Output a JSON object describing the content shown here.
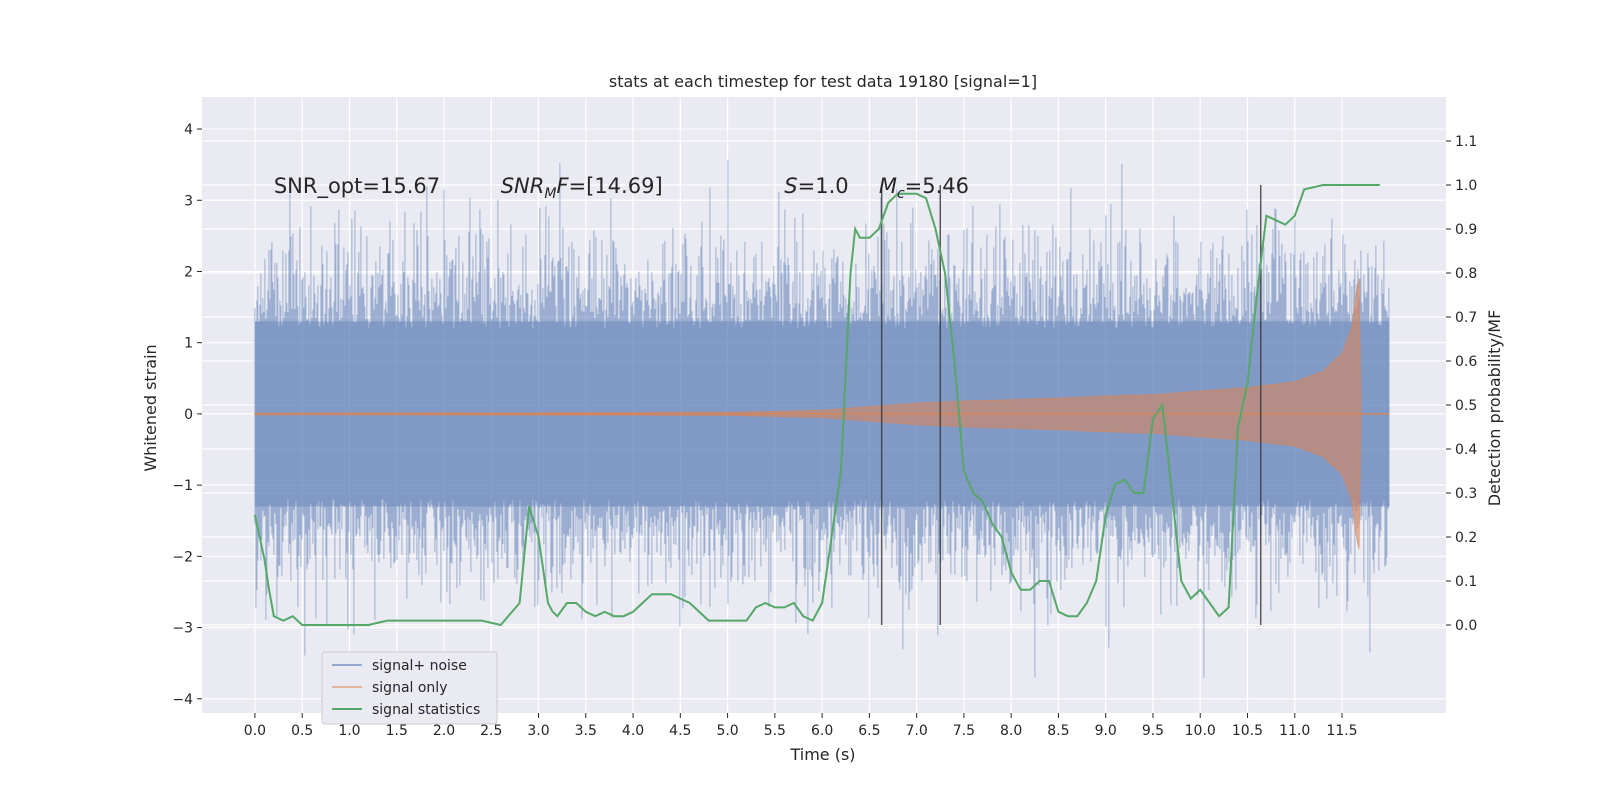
{
  "chart_data": {
    "type": "line",
    "title": "stats at each timestep for test data 19180 [signal=1]",
    "xlabel": "Time (s)",
    "ylabel": "Whitened strain",
    "y2label": "Detection probability/MF",
    "xlim": [
      -0.56,
      12.6
    ],
    "ylim": [
      -4.2,
      4.45
    ],
    "y2lim": [
      -0.2,
      1.2
    ],
    "xticks": [
      0.0,
      0.5,
      1.0,
      1.5,
      2.0,
      2.5,
      3.0,
      3.5,
      4.0,
      4.5,
      5.0,
      5.5,
      6.0,
      6.5,
      7.0,
      7.5,
      8.0,
      8.5,
      9.0,
      9.5,
      10.0,
      10.5,
      11.0,
      11.5
    ],
    "xtick_labels": [
      "0.0",
      "0.5",
      "1.0",
      "1.5",
      "2.0",
      "2.5",
      "3.0",
      "3.5",
      "4.0",
      "4.5",
      "5.0",
      "5.5",
      "6.0",
      "6.5",
      "7.0",
      "7.5",
      "8.0",
      "8.5",
      "9.0",
      "9.5",
      "10.0",
      "10.5",
      "11.0",
      "11.5"
    ],
    "yticks": [
      -4,
      -3,
      -2,
      -1,
      0,
      1,
      2,
      3,
      4
    ],
    "ytick_labels": [
      "−4",
      "−3",
      "−2",
      "−1",
      "0",
      "1",
      "2",
      "3",
      "4"
    ],
    "y2ticks": [
      0.0,
      0.1,
      0.2,
      0.3,
      0.4,
      0.5,
      0.6,
      0.7,
      0.8,
      0.9,
      1.0,
      1.1
    ],
    "y2tick_labels": [
      "0.0",
      "0.1",
      "0.2",
      "0.3",
      "0.4",
      "0.5",
      "0.6",
      "0.7",
      "0.8",
      "0.9",
      "1.0",
      "1.1"
    ],
    "grid": true,
    "legend_position": "lower-left",
    "annotations": [
      {
        "text": "SNR_opt=15.67",
        "x": 0.2,
        "y": 3.2
      },
      {
        "text": "SNR_MF=[14.69]",
        "x": 2.6,
        "y": 3.2
      },
      {
        "text": "S=1.0",
        "x": 5.6,
        "y": 3.2
      },
      {
        "text": "M_c=5.46",
        "x": 6.6,
        "y": 3.2
      }
    ],
    "vertical_lines": [
      6.63,
      7.25,
      10.64
    ],
    "series": [
      {
        "name": "signal+ noise",
        "color": "#4c72b0",
        "axis": "left",
        "kind": "noise-band",
        "t_start": 0.0,
        "t_end": 12.0,
        "core_amplitude": 1.3,
        "peak_amplitude": 4.1
      },
      {
        "name": "signal only",
        "color": "#dd8452",
        "axis": "left",
        "kind": "chirp-envelope",
        "t": [
          0.0,
          5.0,
          6.0,
          6.5,
          7.0,
          7.5,
          8.0,
          8.5,
          9.0,
          9.5,
          10.0,
          10.5,
          11.0,
          11.3,
          11.5,
          11.6,
          11.65,
          11.68,
          11.7,
          12.0
        ],
        "amplitude": [
          0.01,
          0.02,
          0.05,
          0.1,
          0.15,
          0.18,
          0.2,
          0.22,
          0.25,
          0.27,
          0.32,
          0.37,
          0.45,
          0.6,
          0.85,
          1.2,
          1.7,
          1.9,
          0.0,
          0.0
        ]
      },
      {
        "name": "signal statistics",
        "color": "#55a868",
        "axis": "right",
        "x": [
          0.0,
          0.1,
          0.15,
          0.2,
          0.3,
          0.4,
          0.5,
          0.6,
          0.8,
          1.0,
          1.2,
          1.4,
          1.6,
          1.8,
          1.9,
          2.0,
          2.2,
          2.4,
          2.6,
          2.8,
          2.9,
          3.0,
          3.1,
          3.15,
          3.2,
          3.3,
          3.4,
          3.5,
          3.6,
          3.7,
          3.8,
          3.9,
          4.0,
          4.1,
          4.2,
          4.3,
          4.4,
          4.5,
          4.6,
          4.8,
          5.0,
          5.2,
          5.3,
          5.4,
          5.5,
          5.6,
          5.7,
          5.8,
          5.9,
          6.0,
          6.1,
          6.2,
          6.3,
          6.35,
          6.4,
          6.5,
          6.6,
          6.7,
          6.8,
          7.0,
          7.1,
          7.2,
          7.3,
          7.4,
          7.5,
          7.6,
          7.7,
          7.8,
          7.9,
          8.0,
          8.1,
          8.2,
          8.3,
          8.4,
          8.5,
          8.6,
          8.7,
          8.8,
          8.9,
          9.0,
          9.1,
          9.2,
          9.3,
          9.4,
          9.5,
          9.6,
          9.7,
          9.8,
          9.9,
          10.0,
          10.1,
          10.2,
          10.3,
          10.4,
          10.5,
          10.6,
          10.7,
          10.8,
          10.9,
          11.0,
          11.1,
          11.3,
          11.5,
          11.7,
          11.8,
          11.9
        ],
        "y": [
          0.25,
          0.15,
          0.08,
          0.02,
          0.01,
          0.02,
          0.0,
          0.0,
          0.0,
          0.0,
          0.0,
          0.01,
          0.01,
          0.01,
          0.01,
          0.01,
          0.01,
          0.01,
          0.0,
          0.05,
          0.27,
          0.2,
          0.05,
          0.03,
          0.02,
          0.05,
          0.05,
          0.03,
          0.02,
          0.03,
          0.02,
          0.02,
          0.03,
          0.05,
          0.07,
          0.07,
          0.07,
          0.06,
          0.05,
          0.01,
          0.01,
          0.01,
          0.04,
          0.05,
          0.04,
          0.04,
          0.05,
          0.02,
          0.01,
          0.05,
          0.2,
          0.35,
          0.8,
          0.9,
          0.88,
          0.88,
          0.9,
          0.96,
          0.98,
          0.98,
          0.97,
          0.9,
          0.8,
          0.6,
          0.35,
          0.3,
          0.28,
          0.23,
          0.2,
          0.12,
          0.08,
          0.08,
          0.1,
          0.1,
          0.03,
          0.02,
          0.02,
          0.05,
          0.1,
          0.25,
          0.32,
          0.33,
          0.3,
          0.3,
          0.47,
          0.5,
          0.3,
          0.1,
          0.06,
          0.08,
          0.05,
          0.02,
          0.04,
          0.45,
          0.55,
          0.75,
          0.93,
          0.92,
          0.91,
          0.93,
          0.99,
          1.0,
          1.0,
          1.0,
          1.0,
          1.0
        ]
      }
    ]
  }
}
